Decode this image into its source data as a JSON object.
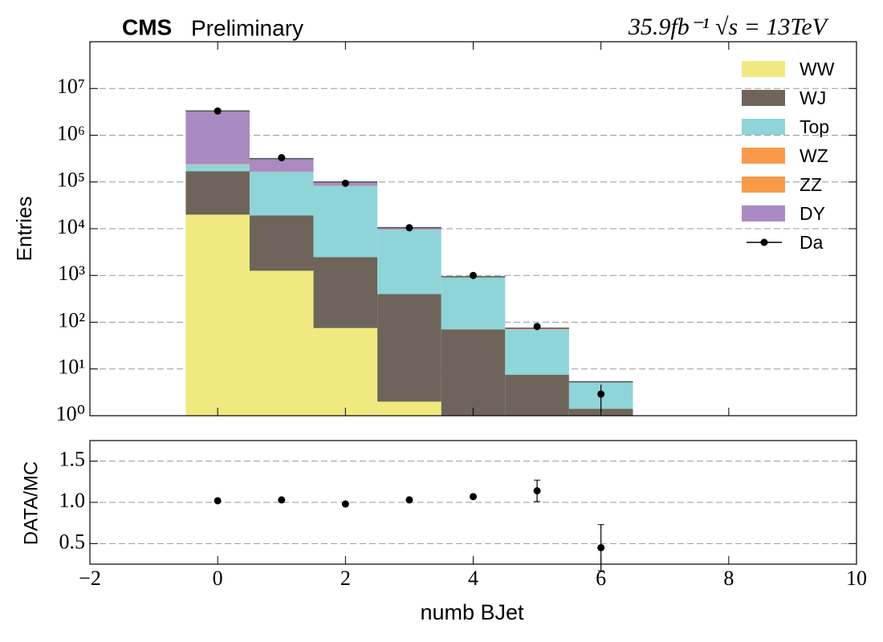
{
  "chart_data": [
    {
      "type": "stacked_histogram",
      "title": "CMS",
      "subtitle": "Preliminary",
      "annotation": "35.9fb⁻¹ √s = 13TeV",
      "y_label": "Entries",
      "log_scale": true,
      "grid": true,
      "legend": "upper right",
      "bins": [
        -0.5,
        0.5,
        1.5,
        2.5,
        3.5,
        4.5,
        5.5,
        6.5
      ],
      "xlim": [
        -2,
        10
      ],
      "ylim": [
        1,
        100000000
      ],
      "yticks": [
        {
          "value": 1,
          "label": "10⁰"
        },
        {
          "value": 10,
          "label": "10¹"
        },
        {
          "value": 100,
          "label": "10²"
        },
        {
          "value": 1000,
          "label": "10³"
        },
        {
          "value": 10000,
          "label": "10⁴"
        },
        {
          "value": 100000,
          "label": "10⁵"
        },
        {
          "value": 1000000,
          "label": "10⁶"
        },
        {
          "value": 10000000,
          "label": "10⁷"
        }
      ],
      "series": [
        {
          "name": "WW",
          "color": "#f0e980",
          "values": [
            20000,
            1260,
            75,
            2,
            0,
            0,
            0
          ]
        },
        {
          "name": "WJ",
          "color": "#6e6459",
          "values": [
            150000,
            18000,
            2400,
            398,
            70,
            7.5,
            1.4
          ]
        },
        {
          "name": "Top",
          "color": "#8fd4d8",
          "values": [
            65000,
            145000,
            80000,
            9100,
            840,
            62,
            3.9
          ]
        },
        {
          "name": "WZ",
          "color": "#f99a4b",
          "values": [
            3000,
            1000,
            300,
            50,
            5,
            1,
            0
          ]
        },
        {
          "name": "ZZ",
          "color": "#f99a4b",
          "values": [
            3000,
            500,
            200,
            30,
            5,
            1,
            0
          ]
        },
        {
          "name": "DY",
          "color": "#a98bc1",
          "values": [
            3060000,
            150000,
            17000,
            1000,
            20,
            3,
            0
          ]
        },
        {
          "name": "Da",
          "color": "#000000",
          "values": [
            3300000,
            330000,
            94000,
            10500,
            1000,
            81,
            2.9
          ],
          "errors": [
            1800,
            580,
            310,
            102,
            32,
            9,
            1.7
          ]
        }
      ]
    },
    {
      "type": "ratio",
      "x_label": "numb BJet",
      "y_label": "DATA/MC",
      "grid": true,
      "color": "#000000",
      "x": [
        0,
        1,
        2,
        3,
        4,
        5,
        6
      ],
      "values": [
        1.02,
        1.03,
        0.98,
        1.03,
        1.07,
        1.14,
        0.45
      ],
      "errors": [
        0.005,
        0.005,
        0.005,
        0.01,
        0.02,
        0.13,
        0.28
      ],
      "xlim": [
        -2,
        10
      ],
      "xticks": [
        {
          "value": -2,
          "label": "−2"
        },
        0,
        2,
        4,
        6,
        8,
        10
      ],
      "ylim": [
        0.25,
        1.75
      ],
      "yticks": [
        0.5,
        {
          "value": 1,
          "label": "1.0"
        },
        1.5
      ]
    }
  ]
}
